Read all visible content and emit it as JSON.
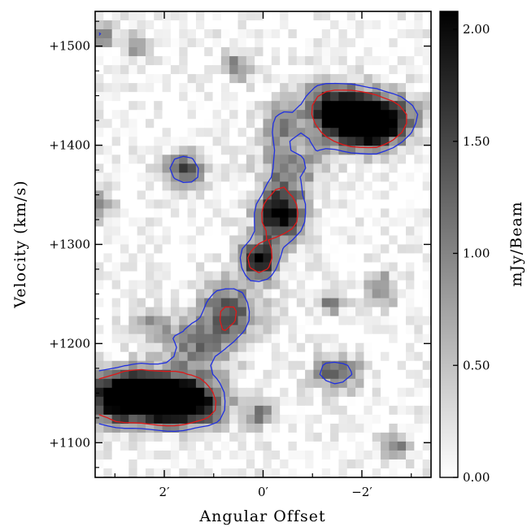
{
  "chart_data": {
    "type": "heatmap",
    "title": "",
    "xlabel": "Angular Offset",
    "ylabel": "Velocity (km/s)",
    "x_unit": "arcmin",
    "x_reversed": true,
    "xlim": [
      3.4,
      -3.4
    ],
    "ylim": [
      1065,
      1535
    ],
    "x_ticks": [
      {
        "value": 2,
        "label": "2′"
      },
      {
        "value": 0,
        "label": "0′"
      },
      {
        "value": -2,
        "label": "−2′"
      }
    ],
    "y_ticks": [
      {
        "value": 1100,
        "label": "+1100"
      },
      {
        "value": 1200,
        "label": "+1200"
      },
      {
        "value": 1300,
        "label": "+1300"
      },
      {
        "value": 1400,
        "label": "+1400"
      },
      {
        "value": 1500,
        "label": "+1500"
      }
    ],
    "colorbar": {
      "label": "mJy/Beam",
      "range": [
        0.0,
        2.08
      ],
      "ticks": [
        {
          "value": 0.0,
          "label": "0.00"
        },
        {
          "value": 0.5,
          "label": "0.50"
        },
        {
          "value": 1.0,
          "label": "1.00"
        },
        {
          "value": 1.5,
          "label": "1.50"
        },
        {
          "value": 2.0,
          "label": "2.00"
        }
      ],
      "colormap": "white-to-black"
    },
    "grid": false,
    "emission_components": [
      {
        "x": 2.3,
        "y": 1148,
        "peak": 2.2,
        "sx": 0.75,
        "sy": 17
      },
      {
        "x": 1.6,
        "y": 1138,
        "peak": 2.0,
        "sx": 0.55,
        "sy": 15
      },
      {
        "x": 2.9,
        "y": 1145,
        "peak": 1.4,
        "sx": 0.45,
        "sy": 18
      },
      {
        "x": 1.3,
        "y": 1195,
        "peak": 1.0,
        "sx": 0.45,
        "sy": 18
      },
      {
        "x": 0.7,
        "y": 1232,
        "peak": 1.3,
        "sx": 0.45,
        "sy": 22
      },
      {
        "x": 0.05,
        "y": 1285,
        "peak": 1.9,
        "sx": 0.28,
        "sy": 14
      },
      {
        "x": -0.35,
        "y": 1330,
        "peak": 2.2,
        "sx": 0.32,
        "sy": 18
      },
      {
        "x": -0.55,
        "y": 1375,
        "peak": 1.0,
        "sx": 0.45,
        "sy": 18
      },
      {
        "x": -2.0,
        "y": 1420,
        "peak": 2.4,
        "sx": 0.55,
        "sy": 18
      },
      {
        "x": -1.5,
        "y": 1440,
        "peak": 1.7,
        "sx": 0.5,
        "sy": 16
      },
      {
        "x": -2.6,
        "y": 1430,
        "peak": 1.0,
        "sx": 0.4,
        "sy": 15
      },
      {
        "x": 1.6,
        "y": 1375,
        "peak": 1.4,
        "sx": 0.28,
        "sy": 12
      },
      {
        "x": -0.35,
        "y": 1420,
        "peak": 1.1,
        "sx": 0.25,
        "sy": 15
      },
      {
        "x": -1.5,
        "y": 1170,
        "peak": 1.3,
        "sx": 0.35,
        "sy": 12
      },
      {
        "x": -2.4,
        "y": 1255,
        "peak": 1.1,
        "sx": 0.22,
        "sy": 12
      },
      {
        "x": -2.7,
        "y": 1095,
        "peak": 1.0,
        "sx": 0.2,
        "sy": 10
      },
      {
        "x": 0.05,
        "y": 1130,
        "peak": 1.1,
        "sx": 0.2,
        "sy": 10
      },
      {
        "x": 0.5,
        "y": 1480,
        "peak": 1.0,
        "sx": 0.18,
        "sy": 10
      },
      {
        "x": 2.6,
        "y": 1500,
        "peak": 0.9,
        "sx": 0.2,
        "sy": 8
      },
      {
        "x": 3.3,
        "y": 1510,
        "peak": 1.0,
        "sx": 0.2,
        "sy": 9
      },
      {
        "x": -1.35,
        "y": 1240,
        "peak": 0.9,
        "sx": 0.2,
        "sy": 8
      },
      {
        "x": 2.2,
        "y": 1220,
        "peak": 0.8,
        "sx": 0.3,
        "sy": 10
      },
      {
        "x": 3.3,
        "y": 1340,
        "peak": 0.7,
        "sx": 0.2,
        "sy": 12
      }
    ],
    "contours": [
      {
        "name": "",
        "color": "#2030e0",
        "level": 0.78
      },
      {
        "name": "",
        "color": "#e01818",
        "level": 1.25
      }
    ]
  }
}
